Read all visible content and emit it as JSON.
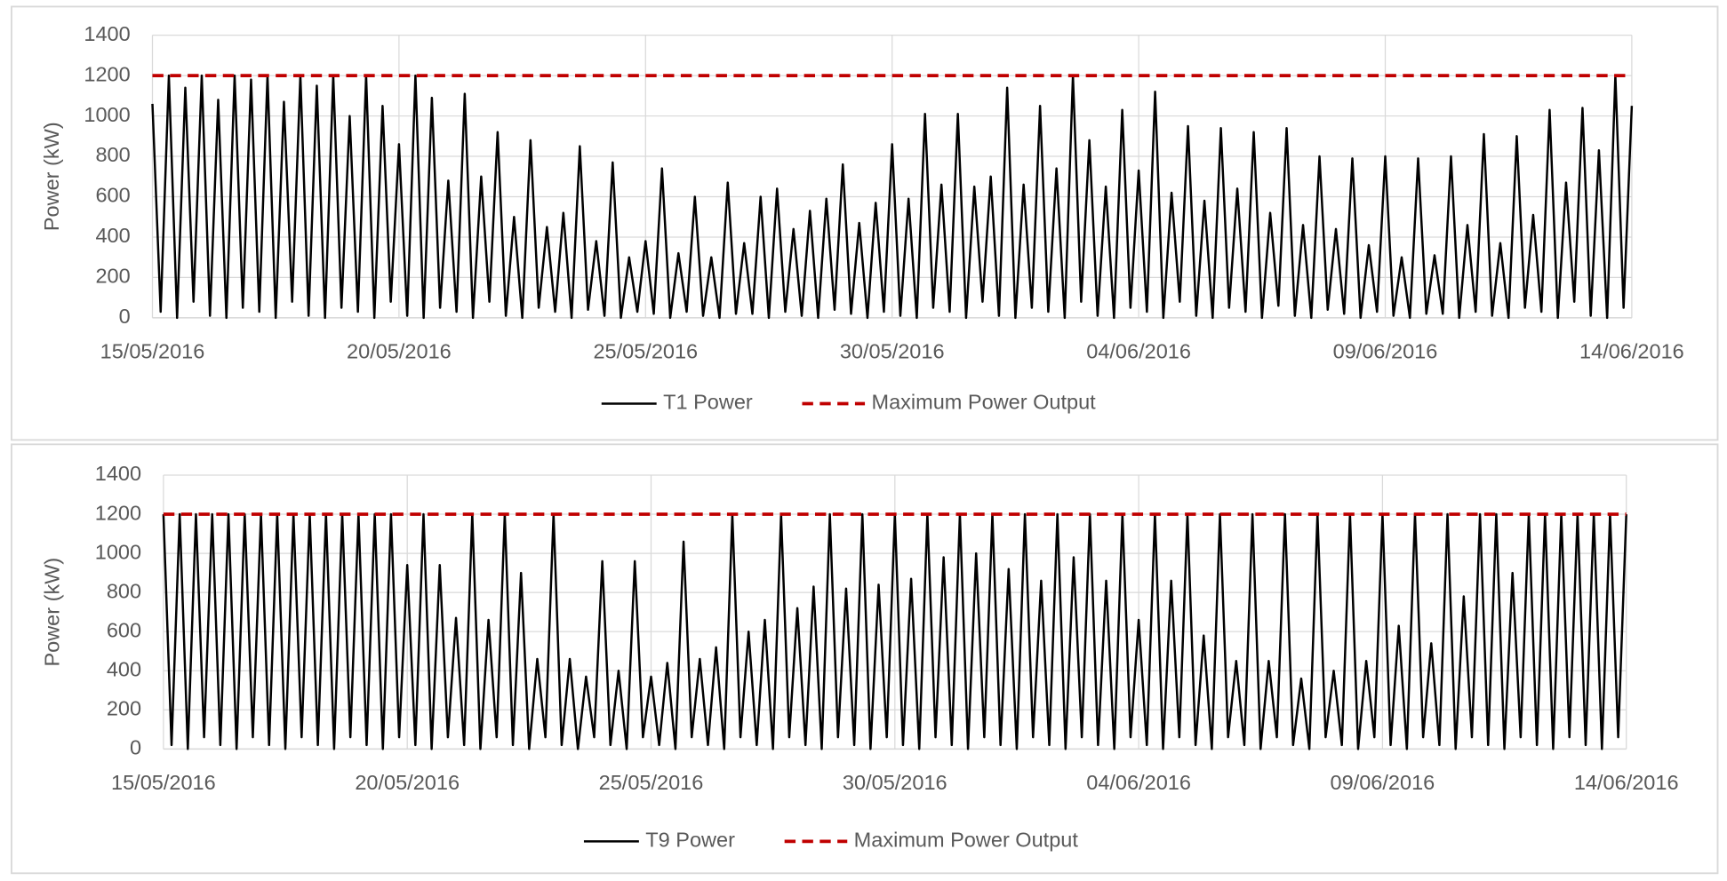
{
  "chart_data": [
    {
      "type": "line",
      "y_label": "Power (kW)",
      "x": [
        0,
        4,
        8,
        12,
        16,
        20,
        24,
        28,
        32,
        36,
        40,
        44,
        48,
        52,
        56,
        60,
        64,
        68,
        72,
        76,
        80,
        84,
        88,
        92,
        96,
        100,
        104,
        108,
        112,
        116,
        120,
        124,
        128,
        132,
        136,
        140,
        144,
        148,
        152,
        156,
        160,
        164,
        168,
        172,
        176,
        180,
        184,
        188,
        192,
        196,
        200,
        204,
        208,
        212,
        216,
        220,
        224,
        228,
        232,
        236,
        240,
        244,
        248,
        252,
        256,
        260,
        264,
        268,
        272,
        276,
        280,
        284,
        288,
        292,
        296,
        300,
        304,
        308,
        312,
        316,
        320,
        324,
        328,
        332,
        336,
        340,
        344,
        348,
        352,
        356,
        360,
        364,
        368,
        372,
        376,
        380,
        384,
        388,
        392,
        396,
        400,
        404,
        408,
        412,
        416,
        420,
        424,
        428,
        432,
        436,
        440,
        444,
        448,
        452,
        456,
        460,
        464,
        468,
        472,
        476,
        480,
        484,
        488,
        492,
        496,
        500,
        504,
        508,
        512,
        516,
        520,
        524,
        528,
        532,
        536,
        540,
        544,
        548,
        552,
        556,
        560,
        564,
        568,
        572,
        576,
        580,
        584,
        588,
        592,
        596,
        600,
        604,
        608,
        612,
        616,
        620,
        624,
        628,
        632,
        636,
        640,
        644,
        648,
        652,
        656,
        660,
        664,
        668,
        672,
        676,
        680,
        684,
        688,
        692,
        696,
        700,
        704,
        708,
        712,
        716,
        720
      ],
      "series": [
        {
          "name": "T1 Power",
          "color": "#000000",
          "values": [
            1060,
            30,
            1200,
            0,
            1140,
            80,
            1200,
            10,
            1080,
            0,
            1200,
            50,
            1180,
            30,
            1200,
            0,
            1070,
            80,
            1200,
            10,
            1150,
            0,
            1200,
            50,
            1000,
            30,
            1200,
            0,
            1050,
            80,
            860,
            10,
            1200,
            0,
            1090,
            50,
            680,
            30,
            1110,
            0,
            700,
            80,
            920,
            10,
            500,
            0,
            880,
            50,
            450,
            30,
            520,
            0,
            850,
            40,
            380,
            10,
            770,
            0,
            300,
            30,
            380,
            20,
            740,
            0,
            320,
            30,
            600,
            10,
            300,
            0,
            670,
            20,
            370,
            20,
            600,
            0,
            640,
            30,
            440,
            10,
            530,
            0,
            590,
            40,
            760,
            20,
            470,
            0,
            570,
            30,
            860,
            10,
            590,
            0,
            1010,
            50,
            660,
            30,
            1010,
            0,
            650,
            80,
            700,
            10,
            1140,
            0,
            660,
            50,
            1050,
            30,
            740,
            0,
            1200,
            80,
            880,
            10,
            650,
            0,
            1030,
            50,
            730,
            30,
            1120,
            0,
            620,
            80,
            950,
            10,
            580,
            0,
            940,
            50,
            640,
            30,
            920,
            0,
            520,
            60,
            940,
            10,
            460,
            0,
            800,
            40,
            440,
            20,
            790,
            0,
            360,
            30,
            800,
            10,
            300,
            0,
            790,
            20,
            310,
            20,
            800,
            0,
            460,
            30,
            910,
            10,
            370,
            0,
            900,
            50,
            510,
            30,
            1030,
            0,
            670,
            80,
            1040,
            10,
            830,
            0,
            1200,
            50,
            1050
          ]
        }
      ],
      "hlines": [
        {
          "name": "Maximum Power Output",
          "value": 1200,
          "color": "#c00000",
          "dashed": true
        }
      ],
      "xlim": [
        0,
        720
      ],
      "xticks": [
        {
          "value": 0,
          "label": "15/05/2016"
        },
        {
          "value": 120,
          "label": "20/05/2016"
        },
        {
          "value": 240,
          "label": "25/05/2016"
        },
        {
          "value": 360,
          "label": "30/05/2016"
        },
        {
          "value": 480,
          "label": "04/06/2016"
        },
        {
          "value": 600,
          "label": "09/06/2016"
        },
        {
          "value": 720,
          "label": "14/06/2016"
        }
      ],
      "ylim": [
        0,
        1400
      ],
      "yticks": [
        0,
        200,
        400,
        600,
        800,
        1000,
        1200,
        1400
      ],
      "grid": true,
      "legend": "bottom"
    },
    {
      "type": "line",
      "y_label": "Power (kW)",
      "x": [
        0,
        4,
        8,
        12,
        16,
        20,
        24,
        28,
        32,
        36,
        40,
        44,
        48,
        52,
        56,
        60,
        64,
        68,
        72,
        76,
        80,
        84,
        88,
        92,
        96,
        100,
        104,
        108,
        112,
        116,
        120,
        124,
        128,
        132,
        136,
        140,
        144,
        148,
        152,
        156,
        160,
        164,
        168,
        172,
        176,
        180,
        184,
        188,
        192,
        196,
        200,
        204,
        208,
        212,
        216,
        220,
        224,
        228,
        232,
        236,
        240,
        244,
        248,
        252,
        256,
        260,
        264,
        268,
        272,
        276,
        280,
        284,
        288,
        292,
        296,
        300,
        304,
        308,
        312,
        316,
        320,
        324,
        328,
        332,
        336,
        340,
        344,
        348,
        352,
        356,
        360,
        364,
        368,
        372,
        376,
        380,
        384,
        388,
        392,
        396,
        400,
        404,
        408,
        412,
        416,
        420,
        424,
        428,
        432,
        436,
        440,
        444,
        448,
        452,
        456,
        460,
        464,
        468,
        472,
        476,
        480,
        484,
        488,
        492,
        496,
        500,
        504,
        508,
        512,
        516,
        520,
        524,
        528,
        532,
        536,
        540,
        544,
        548,
        552,
        556,
        560,
        564,
        568,
        572,
        576,
        580,
        584,
        588,
        592,
        596,
        600,
        604,
        608,
        612,
        616,
        620,
        624,
        628,
        632,
        636,
        640,
        644,
        648,
        652,
        656,
        660,
        664,
        668,
        672,
        676,
        680,
        684,
        688,
        692,
        696,
        700,
        704,
        708,
        712,
        716,
        720
      ],
      "series": [
        {
          "name": "T9 Power",
          "color": "#000000",
          "values": [
            1200,
            20,
            1200,
            0,
            1200,
            60,
            1200,
            20,
            1200,
            0,
            1200,
            60,
            1200,
            20,
            1200,
            0,
            1200,
            60,
            1200,
            20,
            1200,
            0,
            1200,
            60,
            1200,
            20,
            1200,
            0,
            1200,
            60,
            940,
            20,
            1200,
            0,
            940,
            60,
            670,
            20,
            1200,
            0,
            660,
            60,
            1200,
            20,
            900,
            0,
            460,
            60,
            1200,
            20,
            460,
            0,
            370,
            60,
            960,
            20,
            400,
            0,
            960,
            60,
            370,
            20,
            440,
            0,
            1060,
            60,
            460,
            20,
            520,
            0,
            1200,
            60,
            600,
            20,
            660,
            0,
            1200,
            60,
            720,
            20,
            830,
            0,
            1200,
            60,
            820,
            20,
            1200,
            0,
            840,
            60,
            1200,
            20,
            870,
            0,
            1200,
            60,
            980,
            20,
            1200,
            0,
            1000,
            60,
            1200,
            20,
            920,
            0,
            1200,
            60,
            860,
            20,
            1200,
            0,
            980,
            60,
            1200,
            20,
            860,
            0,
            1200,
            60,
            660,
            20,
            1200,
            0,
            860,
            60,
            1200,
            20,
            580,
            0,
            1200,
            60,
            450,
            20,
            1200,
            0,
            450,
            60,
            1200,
            20,
            360,
            0,
            1200,
            60,
            400,
            20,
            1200,
            0,
            450,
            60,
            1200,
            20,
            630,
            0,
            1200,
            60,
            540,
            20,
            1200,
            0,
            780,
            60,
            1200,
            20,
            1200,
            0,
            900,
            60,
            1200,
            20,
            1200,
            0,
            1200,
            60,
            1200,
            20,
            1200,
            0,
            1200,
            60,
            1200
          ]
        }
      ],
      "hlines": [
        {
          "name": "Maximum Power Output",
          "value": 1200,
          "color": "#c00000",
          "dashed": true
        }
      ],
      "xlim": [
        0,
        720
      ],
      "xticks": [
        {
          "value": 0,
          "label": "15/05/2016"
        },
        {
          "value": 120,
          "label": "20/05/2016"
        },
        {
          "value": 240,
          "label": "25/05/2016"
        },
        {
          "value": 360,
          "label": "30/05/2016"
        },
        {
          "value": 480,
          "label": "04/06/2016"
        },
        {
          "value": 600,
          "label": "09/06/2016"
        },
        {
          "value": 720,
          "label": "14/06/2016"
        }
      ],
      "ylim": [
        0,
        1400
      ],
      "yticks": [
        0,
        200,
        400,
        600,
        800,
        1000,
        1200,
        1400
      ],
      "grid": true,
      "legend": "bottom"
    }
  ]
}
